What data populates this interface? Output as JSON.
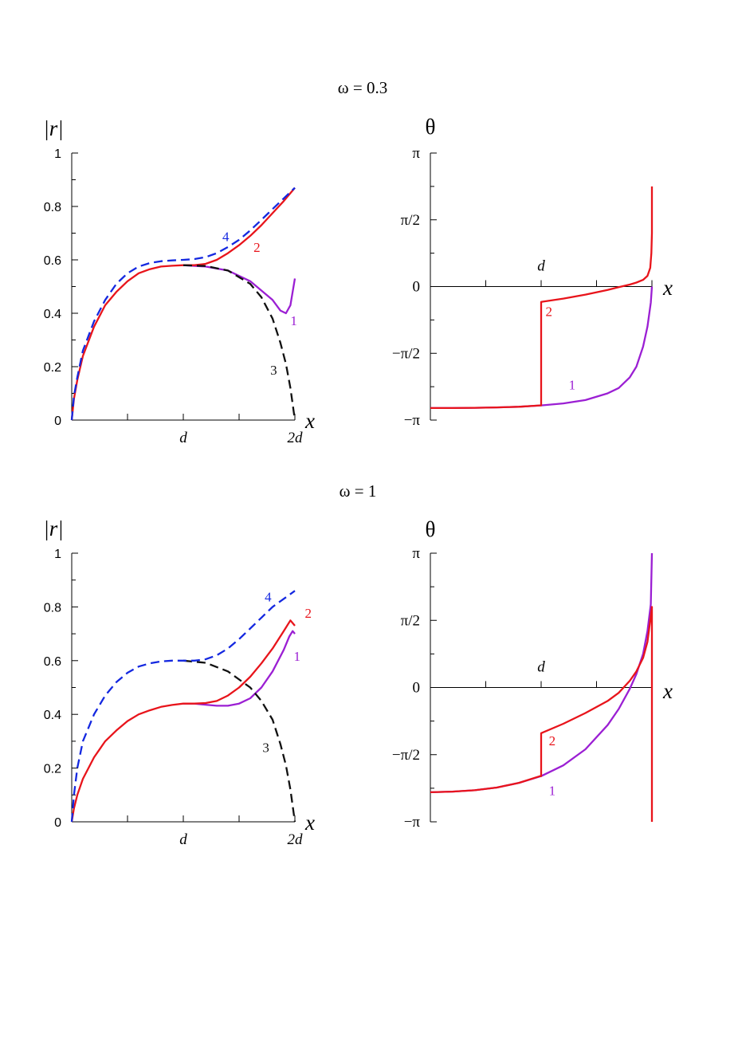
{
  "chart_data": [
    {
      "type": "line",
      "panel_title": "ω = 0.3",
      "ylabel": "|r|",
      "xlabel": "x",
      "ylim": [
        0,
        1
      ],
      "xlim": [
        0,
        2
      ],
      "yticks": [
        0,
        0.2,
        0.4,
        0.6,
        0.8,
        1
      ],
      "ytick_labels": [
        "0",
        "0.2",
        "0.4",
        "0.6",
        "0.8",
        "1"
      ],
      "xtick_labels": [
        {
          "x": 1,
          "label": "d"
        },
        {
          "x": 2,
          "label": "2d"
        }
      ],
      "series": [
        {
          "name": "1",
          "color": "#9B1FD3",
          "dash": false,
          "label_at": [
            1.99,
            0.355
          ],
          "x": [
            1.0,
            1.2,
            1.4,
            1.6,
            1.7,
            1.8,
            1.87,
            1.92,
            1.96,
            2.0
          ],
          "y": [
            0.58,
            0.575,
            0.56,
            0.52,
            0.485,
            0.45,
            0.41,
            0.4,
            0.43,
            0.53
          ]
        },
        {
          "name": "2",
          "color": "#E8141B",
          "dash": false,
          "label_at": [
            1.66,
            0.63
          ],
          "x": [
            0,
            0.02,
            0.05,
            0.1,
            0.2,
            0.3,
            0.4,
            0.5,
            0.6,
            0.7,
            0.8,
            0.9,
            1.0,
            1.1,
            1.2,
            1.3,
            1.4,
            1.5,
            1.6,
            1.7,
            1.8,
            1.9,
            2.0
          ],
          "y": [
            0,
            0.08,
            0.15,
            0.24,
            0.35,
            0.43,
            0.48,
            0.52,
            0.55,
            0.565,
            0.575,
            0.578,
            0.58,
            0.58,
            0.585,
            0.6,
            0.625,
            0.655,
            0.69,
            0.73,
            0.775,
            0.82,
            0.87
          ]
        },
        {
          "name": "3",
          "color": "#111111",
          "dash": true,
          "label_at": [
            1.81,
            0.17
          ],
          "x": [
            1.0,
            1.2,
            1.4,
            1.6,
            1.7,
            1.8,
            1.87,
            1.92,
            1.96,
            2.0
          ],
          "y": [
            0.58,
            0.577,
            0.56,
            0.51,
            0.46,
            0.38,
            0.29,
            0.21,
            0.12,
            0.0
          ]
        },
        {
          "name": "4",
          "color": "#1428E0",
          "dash": true,
          "label_at": [
            1.38,
            0.67
          ],
          "x": [
            0,
            0.02,
            0.05,
            0.1,
            0.2,
            0.3,
            0.4,
            0.5,
            0.6,
            0.7,
            0.8,
            0.9,
            1.0,
            1.1,
            1.2,
            1.3,
            1.4,
            1.5,
            1.6,
            1.7,
            1.8,
            1.9,
            2.0
          ],
          "y": [
            0,
            0.09,
            0.16,
            0.26,
            0.37,
            0.45,
            0.51,
            0.55,
            0.575,
            0.588,
            0.595,
            0.598,
            0.6,
            0.603,
            0.61,
            0.625,
            0.648,
            0.675,
            0.71,
            0.75,
            0.79,
            0.83,
            0.87
          ]
        }
      ]
    },
    {
      "type": "line",
      "panel_title": "",
      "ylabel": "θ",
      "xlabel": "x",
      "ylim": [
        -1,
        1
      ],
      "xlim": [
        0,
        2
      ],
      "yticks": [
        -1,
        -0.5,
        0,
        0.5,
        1
      ],
      "ytick_labels": [
        "−π",
        "−π/2",
        "0",
        "π/2",
        "π"
      ],
      "xtick_labels": [
        {
          "x": 1,
          "label": "d"
        }
      ],
      "series": [
        {
          "name": "1",
          "color": "#9B1FD3",
          "dash": false,
          "label_at": [
            1.28,
            -0.77
          ],
          "x": [
            0,
            0.2,
            0.4,
            0.6,
            0.8,
            1.0,
            1.2,
            1.4,
            1.6,
            1.7,
            1.8,
            1.86,
            1.92,
            1.96,
            1.99,
            2.0
          ],
          "y": [
            -0.91,
            -0.91,
            -0.908,
            -0.905,
            -0.9,
            -0.89,
            -0.875,
            -0.85,
            -0.8,
            -0.76,
            -0.68,
            -0.6,
            -0.45,
            -0.3,
            -0.12,
            0.0
          ]
        },
        {
          "name": "2",
          "color": "#E8141B",
          "dash": false,
          "label_at": [
            1.07,
            -0.22
          ],
          "x": [
            0,
            0.2,
            0.4,
            0.6,
            0.8,
            0.99,
            1.0,
            1.0,
            1.2,
            1.4,
            1.6,
            1.7,
            1.8,
            1.86,
            1.92,
            1.96,
            1.985,
            1.995,
            2.0,
            2.0
          ],
          "y": [
            -0.91,
            -0.91,
            -0.908,
            -0.905,
            -0.9,
            -0.89,
            -0.89,
            -0.115,
            -0.09,
            -0.06,
            -0.025,
            -0.005,
            0.015,
            0.03,
            0.05,
            0.08,
            0.14,
            0.25,
            0.4,
            0.75
          ]
        }
      ]
    },
    {
      "type": "line",
      "panel_title": "ω = 1",
      "ylabel": "|r|",
      "xlabel": "x",
      "ylim": [
        0,
        1
      ],
      "xlim": [
        0,
        2
      ],
      "yticks": [
        0,
        0.2,
        0.4,
        0.6,
        0.8,
        1
      ],
      "ytick_labels": [
        "0",
        "0.2",
        "0.4",
        "0.6",
        "0.8",
        "1"
      ],
      "xtick_labels": [
        {
          "x": 1,
          "label": "d"
        },
        {
          "x": 2,
          "label": "2d"
        }
      ],
      "series": [
        {
          "name": "1",
          "color": "#9B1FD3",
          "dash": false,
          "label_at": [
            2.02,
            0.6
          ],
          "x": [
            1.0,
            1.1,
            1.2,
            1.3,
            1.4,
            1.5,
            1.6,
            1.7,
            1.8,
            1.85,
            1.9,
            1.95,
            1.98,
            2.0
          ],
          "y": [
            0.44,
            0.44,
            0.436,
            0.432,
            0.432,
            0.44,
            0.46,
            0.5,
            0.56,
            0.6,
            0.64,
            0.69,
            0.71,
            0.7
          ]
        },
        {
          "name": "2",
          "color": "#E8141B",
          "dash": false,
          "label_at": [
            2.12,
            0.76
          ],
          "x": [
            0,
            0.02,
            0.05,
            0.1,
            0.2,
            0.3,
            0.4,
            0.5,
            0.6,
            0.7,
            0.8,
            0.9,
            1.0,
            1.1,
            1.2,
            1.3,
            1.4,
            1.5,
            1.6,
            1.7,
            1.8,
            1.9,
            1.96,
            2.0
          ],
          "y": [
            0,
            0.05,
            0.1,
            0.16,
            0.24,
            0.3,
            0.34,
            0.375,
            0.4,
            0.415,
            0.428,
            0.435,
            0.44,
            0.44,
            0.442,
            0.45,
            0.47,
            0.5,
            0.54,
            0.59,
            0.645,
            0.71,
            0.75,
            0.73
          ]
        },
        {
          "name": "3",
          "color": "#111111",
          "dash": true,
          "label_at": [
            1.74,
            0.26
          ],
          "x": [
            1.0,
            1.2,
            1.4,
            1.6,
            1.7,
            1.8,
            1.87,
            1.92,
            1.96,
            2.0
          ],
          "y": [
            0.6,
            0.592,
            0.56,
            0.5,
            0.45,
            0.38,
            0.29,
            0.21,
            0.12,
            0.0
          ]
        },
        {
          "name": "4",
          "color": "#1428E0",
          "dash": true,
          "label_at": [
            1.76,
            0.82
          ],
          "x": [
            0,
            0.02,
            0.05,
            0.1,
            0.2,
            0.3,
            0.4,
            0.5,
            0.6,
            0.7,
            0.8,
            0.9,
            1.0,
            1.1,
            1.2,
            1.3,
            1.4,
            1.5,
            1.6,
            1.7,
            1.8,
            1.9,
            2.0
          ],
          "y": [
            0,
            0.1,
            0.2,
            0.3,
            0.4,
            0.47,
            0.52,
            0.555,
            0.578,
            0.59,
            0.597,
            0.6,
            0.6,
            0.6,
            0.605,
            0.62,
            0.645,
            0.68,
            0.72,
            0.76,
            0.8,
            0.83,
            0.86
          ]
        }
      ]
    },
    {
      "type": "line",
      "panel_title": "",
      "ylabel": "θ",
      "xlabel": "x",
      "ylim": [
        -1,
        1
      ],
      "xlim": [
        0,
        2
      ],
      "yticks": [
        -1,
        -0.5,
        0,
        0.5,
        1
      ],
      "ytick_labels": [
        "−π",
        "−π/2",
        "0",
        "π/2",
        "π"
      ],
      "xtick_labels": [
        {
          "x": 1,
          "label": "d"
        }
      ],
      "series": [
        {
          "name": "1",
          "color": "#9B1FD3",
          "dash": false,
          "label_at": [
            1.1,
            -0.8
          ],
          "x": [
            0,
            0.2,
            0.4,
            0.6,
            0.8,
            1.0,
            1.2,
            1.4,
            1.6,
            1.7,
            1.8,
            1.86,
            1.92,
            1.96,
            1.99,
            2.0
          ],
          "y": [
            -0.78,
            -0.775,
            -0.765,
            -0.745,
            -0.71,
            -0.66,
            -0.58,
            -0.46,
            -0.28,
            -0.16,
            -0.01,
            0.1,
            0.25,
            0.42,
            0.62,
            1.0
          ]
        },
        {
          "name": "2",
          "color": "#E8141B",
          "dash": false,
          "label_at": [
            1.1,
            -0.43
          ],
          "x": [
            0,
            0.2,
            0.4,
            0.6,
            0.8,
            0.99,
            1.0,
            1.0,
            1.2,
            1.4,
            1.6,
            1.7,
            1.8,
            1.86,
            1.92,
            1.96,
            1.985,
            2.0,
            2.0
          ],
          "y": [
            -0.78,
            -0.775,
            -0.765,
            -0.745,
            -0.71,
            -0.66,
            -0.66,
            -0.34,
            -0.27,
            -0.19,
            -0.1,
            -0.04,
            0.05,
            0.12,
            0.22,
            0.34,
            0.5,
            0.6,
            -1.0
          ]
        }
      ]
    }
  ]
}
